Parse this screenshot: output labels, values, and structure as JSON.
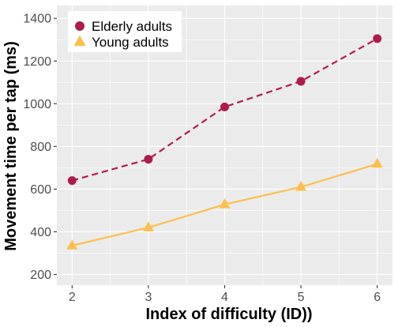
{
  "chart_data": {
    "type": "line",
    "title": "",
    "xlabel": "Index of difficulty (ID))",
    "ylabel": "Movement time per tap (ms)",
    "x": [
      2,
      3,
      4,
      5,
      6
    ],
    "xlim": [
      1.8,
      6.2
    ],
    "ylim": [
      150,
      1460
    ],
    "x_ticks": [
      2,
      3,
      4,
      5,
      6
    ],
    "y_ticks": [
      200,
      400,
      600,
      800,
      1000,
      1200,
      1400
    ],
    "grid": true,
    "legend_position": "top-left",
    "series": [
      {
        "name": "Elderly adults",
        "values": [
          640,
          740,
          985,
          1105,
          1305
        ],
        "color": "#ad1c4d",
        "line_style": "dashed",
        "marker": "circle"
      },
      {
        "name": "Young adults",
        "values": [
          335,
          420,
          528,
          610,
          718
        ],
        "color": "#fbbf4f",
        "line_style": "solid",
        "marker": "triangle"
      }
    ],
    "colors": {
      "panel_background": "#ebebeb",
      "gridline": "#ffffff"
    }
  }
}
